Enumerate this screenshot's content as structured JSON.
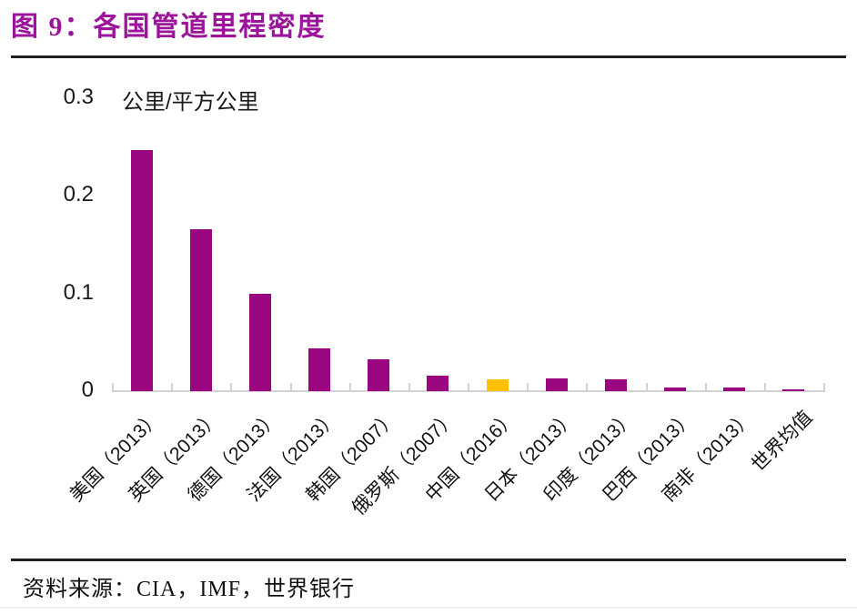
{
  "header": {
    "title": "图 9：各国管道里程密度"
  },
  "footer": {
    "source": "资料来源：CIA，IMF，世界银行"
  },
  "colors": {
    "title_purple": "#9B149B",
    "bar_purple": "#99067F",
    "bar_highlight_yellow": "#FFC000",
    "axis_gray": "#D2D2D2",
    "text_black": "#1A1A1A"
  },
  "chart_data": {
    "type": "bar",
    "title": "图 9：各国管道里程密度",
    "ylabel": "公里/平方公里",
    "xlabel": "",
    "categories": [
      "美国（2013）",
      "英国（2013）",
      "德国（2013）",
      "法国（2013）",
      "韩国（2007）",
      "俄罗斯（2007）",
      "中国（2016）",
      "日本（2013）",
      "印度（2013）",
      "巴西（2013）",
      "南非（2013）",
      "世界均值"
    ],
    "values": [
      0.247,
      0.166,
      0.1,
      0.044,
      0.033,
      0.016,
      0.012,
      0.013,
      0.012,
      0.004,
      0.004,
      0.002
    ],
    "bar_colors": [
      "#99067F",
      "#99067F",
      "#99067F",
      "#99067F",
      "#99067F",
      "#99067F",
      "#FFC000",
      "#99067F",
      "#99067F",
      "#99067F",
      "#99067F",
      "#99067F"
    ],
    "highlight_category": "中国（2016）",
    "ylim": [
      0,
      0.3
    ],
    "yticks": [
      0,
      0.1,
      0.2,
      0.3
    ],
    "ytick_labels": [
      "0",
      "0.1",
      "0.2",
      "0.3"
    ],
    "x_label_rotation_deg": 45,
    "grid": "off",
    "legend": "none"
  }
}
